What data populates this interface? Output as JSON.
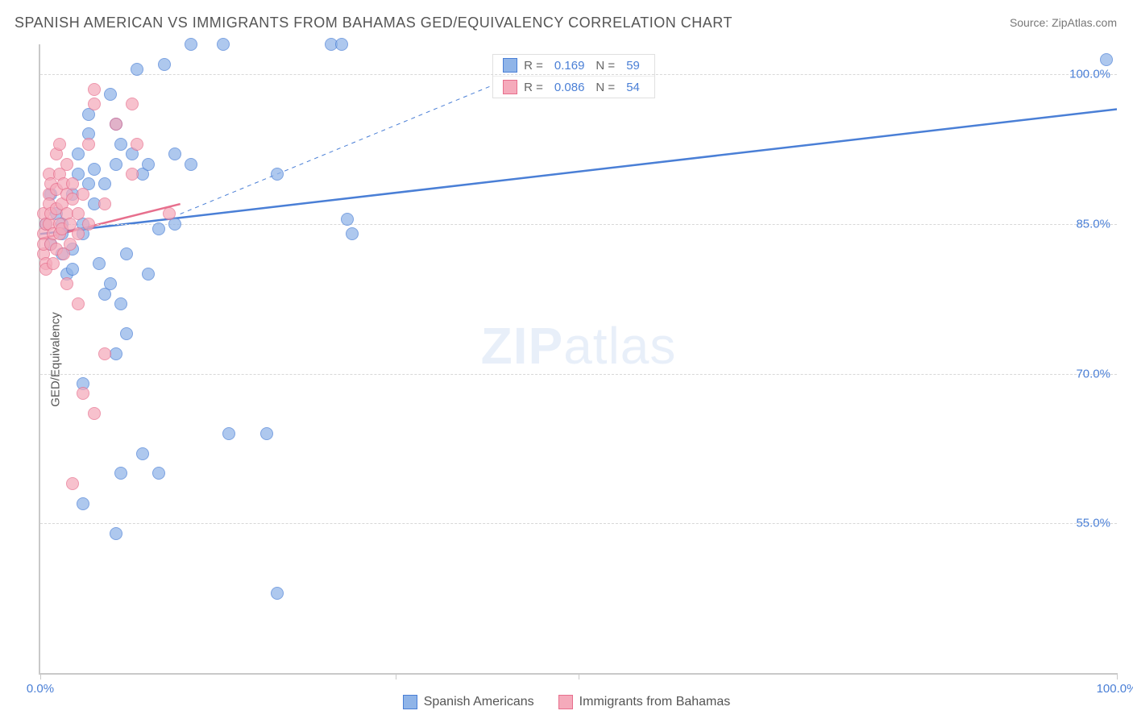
{
  "title": "SPANISH AMERICAN VS IMMIGRANTS FROM BAHAMAS GED/EQUIVALENCY CORRELATION CHART",
  "source": "Source: ZipAtlas.com",
  "watermark": {
    "bold": "ZIP",
    "light": "atlas"
  },
  "ylabel": "GED/Equivalency",
  "chart": {
    "type": "scatter",
    "xlim": [
      0,
      100
    ],
    "ylim": [
      40,
      103
    ],
    "xticks": [
      {
        "v": 0,
        "label": "0.0%"
      },
      {
        "v": 100,
        "label": "100.0%"
      }
    ],
    "xtick_marks": [
      0,
      33,
      50,
      100
    ],
    "yticks": [
      {
        "v": 55,
        "label": "55.0%"
      },
      {
        "v": 70,
        "label": "70.0%"
      },
      {
        "v": 85,
        "label": "85.0%"
      },
      {
        "v": 100,
        "label": "100.0%"
      }
    ],
    "series": [
      {
        "key": "spanish",
        "label": "Spanish Americans",
        "fill": "#8fb4e8",
        "stroke": "#4a7fd6",
        "r_value": "0.169",
        "n_value": "59",
        "trend": {
          "x0": 0,
          "y0": 84,
          "x1": 100,
          "y1": 96.5,
          "dashed": false,
          "width": 2.5
        },
        "dash_guide": {
          "x0": 13,
          "y0": 86,
          "x1": 44.5,
          "y1": 100
        },
        "points": [
          [
            0.5,
            85
          ],
          [
            1,
            83
          ],
          [
            1,
            88
          ],
          [
            1.5,
            86
          ],
          [
            2,
            85
          ],
          [
            2,
            84
          ],
          [
            2,
            82
          ],
          [
            2.5,
            80
          ],
          [
            3,
            80.5
          ],
          [
            3,
            88
          ],
          [
            3.5,
            90
          ],
          [
            3.5,
            92
          ],
          [
            3,
            82.5
          ],
          [
            4,
            84
          ],
          [
            4,
            85
          ],
          [
            4.5,
            89
          ],
          [
            4.5,
            94
          ],
          [
            4.5,
            96
          ],
          [
            5,
            87
          ],
          [
            5,
            90.5
          ],
          [
            5.5,
            81
          ],
          [
            6,
            89
          ],
          [
            6,
            78
          ],
          [
            6.5,
            79
          ],
          [
            6.5,
            98
          ],
          [
            7,
            95
          ],
          [
            7,
            91
          ],
          [
            7.5,
            77
          ],
          [
            7.5,
            93
          ],
          [
            8,
            82
          ],
          [
            8,
            74
          ],
          [
            8.5,
            92
          ],
          [
            9,
            100.5
          ],
          [
            9.5,
            90
          ],
          [
            10,
            91
          ],
          [
            10,
            80
          ],
          [
            11,
            84.5
          ],
          [
            11.5,
            101
          ],
          [
            12.5,
            92
          ],
          [
            12.5,
            85
          ],
          [
            14,
            103
          ],
          [
            14,
            91
          ],
          [
            17,
            103
          ],
          [
            22,
            90
          ],
          [
            27,
            103
          ],
          [
            28.5,
            85.5
          ],
          [
            29,
            84
          ],
          [
            28,
            103
          ],
          [
            4,
            69
          ],
          [
            4,
            57
          ],
          [
            7,
            54
          ],
          [
            7.5,
            60
          ],
          [
            9.5,
            62
          ],
          [
            11,
            60
          ],
          [
            7,
            72
          ],
          [
            17.5,
            64
          ],
          [
            21,
            64
          ],
          [
            22,
            48
          ],
          [
            99,
            101.5
          ]
        ]
      },
      {
        "key": "bahamas",
        "label": "Immigrants from Bahamas",
        "fill": "#f5aabb",
        "stroke": "#e76f8d",
        "r_value": "0.086",
        "n_value": "54",
        "trend": {
          "x0": 0,
          "y0": 83.5,
          "x1": 13,
          "y1": 87,
          "dashed": false,
          "width": 2.5
        },
        "points": [
          [
            0.3,
            84
          ],
          [
            0.3,
            86
          ],
          [
            0.3,
            82
          ],
          [
            0.3,
            83
          ],
          [
            0.5,
            85
          ],
          [
            0.5,
            81
          ],
          [
            0.5,
            80.5
          ],
          [
            0.8,
            88
          ],
          [
            0.8,
            90
          ],
          [
            0.8,
            85
          ],
          [
            0.8,
            87
          ],
          [
            1,
            83
          ],
          [
            1,
            86
          ],
          [
            1,
            89
          ],
          [
            1.2,
            84
          ],
          [
            1.2,
            81
          ],
          [
            1.5,
            86.5
          ],
          [
            1.5,
            88.5
          ],
          [
            1.5,
            92
          ],
          [
            1.5,
            82.5
          ],
          [
            1.8,
            85
          ],
          [
            1.8,
            84
          ],
          [
            1.8,
            90
          ],
          [
            1.8,
            93
          ],
          [
            2,
            87
          ],
          [
            2,
            84.5
          ],
          [
            2.2,
            82
          ],
          [
            2.2,
            89
          ],
          [
            2.5,
            91
          ],
          [
            2.5,
            86
          ],
          [
            2.5,
            88
          ],
          [
            2.8,
            83
          ],
          [
            2.8,
            85
          ],
          [
            3,
            87.5
          ],
          [
            3,
            89
          ],
          [
            3.5,
            86
          ],
          [
            3.5,
            84
          ],
          [
            4,
            88
          ],
          [
            4.5,
            85
          ],
          [
            4.5,
            93
          ],
          [
            5,
            97
          ],
          [
            5,
            98.5
          ],
          [
            6,
            87
          ],
          [
            6,
            72
          ],
          [
            7,
            95
          ],
          [
            8.5,
            97
          ],
          [
            8.5,
            90
          ],
          [
            9,
            93
          ],
          [
            2.5,
            79
          ],
          [
            3.5,
            77
          ],
          [
            4,
            68
          ],
          [
            5,
            66
          ],
          [
            3,
            59
          ],
          [
            12,
            86
          ]
        ]
      }
    ],
    "background_color": "#ffffff",
    "grid_color": "#d8d8d8",
    "axis_color": "#c9c9c9",
    "marker_size": 16,
    "marker_opacity": 0.72
  },
  "legend_labels": {
    "R": "R  =",
    "N": "N  ="
  }
}
